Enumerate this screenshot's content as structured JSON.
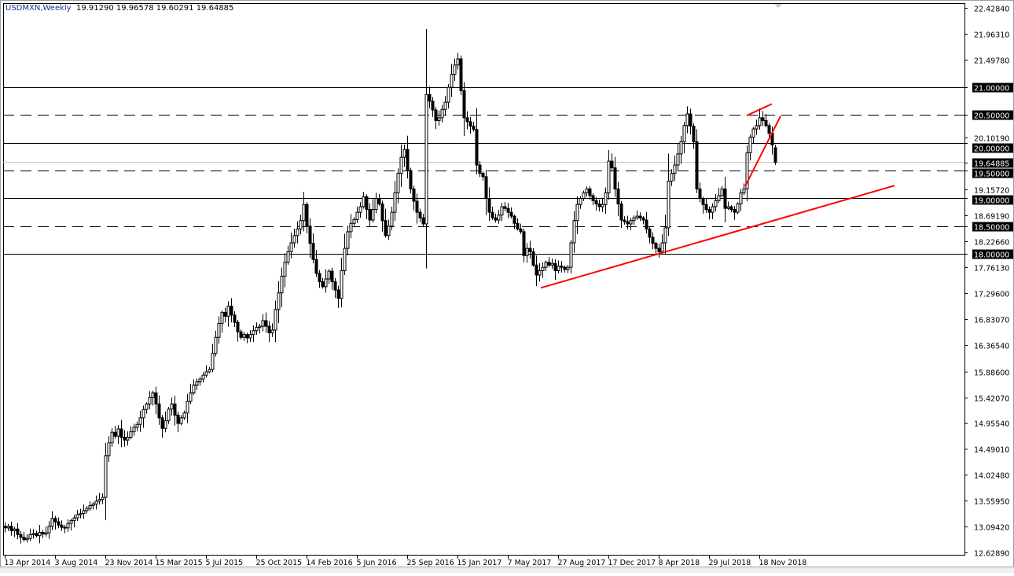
{
  "header": {
    "symbol_period": "USDMXN,Weekly",
    "open": "19.91290",
    "high": "19.96578",
    "low": "19.60291",
    "close": "19.64885"
  },
  "chart_data": {
    "type": "candlestick",
    "title": "USDMXN,Weekly",
    "ylim": [
      12.6289,
      22.4284
    ],
    "y_ticks": [
      "22.42840",
      "21.96310",
      "21.49780",
      "21.00000",
      "20.50000",
      "20.10190",
      "20.00000",
      "19.64885",
      "19.50000",
      "19.15720",
      "19.00000",
      "18.69190",
      "18.50000",
      "18.22660",
      "18.00000",
      "17.76130",
      "17.29600",
      "16.83070",
      "16.36540",
      "15.88600",
      "15.42070",
      "14.95540",
      "14.49010",
      "14.02480",
      "13.55950",
      "13.09420",
      "12.62890"
    ],
    "x_tick_labels": [
      "13 Apr 2014",
      "3 Aug 2014",
      "23 Nov 2014",
      "15 Mar 2015",
      "5 Jul 2015",
      "25 Oct 2015",
      "14 Feb 2016",
      "5 Jun 2016",
      "25 Sep 2016",
      "15 Jan 2017",
      "7 May 2017",
      "27 Aug 2017",
      "17 Dec 2017",
      "8 Apr 2018",
      "29 Jul 2018",
      "18 Nov 2018"
    ],
    "x_tick_interval_weeks": 16,
    "first_week": "13 Apr 2014",
    "weekly_closes": [
      13.07,
      13.1,
      13.02,
      13.05,
      12.95,
      12.9,
      12.86,
      12.88,
      12.95,
      12.97,
      12.93,
      12.99,
      12.96,
      12.98,
      13.1,
      13.24,
      13.18,
      13.12,
      13.08,
      13.07,
      13.15,
      13.2,
      13.25,
      13.31,
      13.33,
      13.38,
      13.42,
      13.47,
      13.5,
      13.55,
      13.58,
      13.62,
      14.37,
      14.6,
      14.79,
      14.72,
      14.85,
      14.7,
      14.65,
      14.7,
      14.8,
      14.88,
      14.93,
      15.05,
      15.2,
      15.3,
      15.42,
      15.5,
      15.3,
      15.05,
      14.86,
      15.0,
      15.21,
      15.3,
      15.1,
      14.95,
      15.05,
      15.14,
      15.35,
      15.5,
      15.64,
      15.7,
      15.75,
      15.82,
      15.88,
      15.92,
      16.21,
      16.5,
      16.75,
      16.95,
      16.88,
      17.06,
      16.9,
      16.77,
      16.6,
      16.5,
      16.55,
      16.49,
      16.55,
      16.62,
      16.68,
      16.7,
      16.8,
      16.7,
      16.58,
      16.63,
      17.0,
      17.3,
      17.6,
      17.85,
      18.04,
      18.2,
      18.33,
      18.45,
      18.6,
      18.89,
      18.5,
      18.19,
      17.9,
      17.65,
      17.5,
      17.41,
      17.55,
      17.69,
      17.5,
      17.35,
      17.2,
      17.7,
      18.1,
      18.4,
      18.55,
      18.62,
      18.75,
      18.85,
      19.03,
      18.8,
      18.61,
      18.8,
      19.0,
      18.9,
      18.6,
      18.33,
      18.5,
      18.75,
      19.1,
      19.45,
      19.74,
      19.88,
      19.5,
      19.17,
      18.95,
      18.75,
      18.65,
      18.54,
      20.87,
      20.75,
      20.59,
      20.4,
      20.45,
      20.6,
      20.73,
      21.0,
      21.23,
      21.4,
      21.51,
      20.94,
      20.45,
      20.38,
      20.3,
      20.24,
      19.6,
      19.45,
      19.39,
      19.0,
      18.75,
      18.65,
      18.61,
      18.7,
      18.85,
      18.82,
      18.75,
      18.68,
      18.55,
      18.45,
      18.4,
      17.97,
      18.1,
      18.04,
      17.8,
      17.62,
      17.7,
      17.76,
      17.85,
      17.8,
      17.83,
      17.7,
      17.78,
      17.76,
      17.72,
      17.76,
      18.2,
      18.6,
      18.89,
      19.0,
      19.1,
      19.17,
      19.05,
      18.96,
      18.9,
      18.85,
      18.89,
      19.1,
      19.67,
      19.55,
      19.17,
      18.9,
      18.61,
      18.58,
      18.54,
      18.6,
      18.65,
      18.68,
      18.65,
      18.61,
      18.45,
      18.3,
      18.19,
      18.1,
      18.04,
      18.2,
      18.47,
      19.31,
      19.45,
      19.6,
      19.8,
      20.02,
      20.31,
      20.52,
      20.3,
      20.02,
      19.17,
      19.0,
      18.89,
      18.8,
      18.75,
      18.85,
      18.96,
      19.05,
      19.17,
      18.82,
      18.85,
      18.8,
      18.75,
      18.9,
      19.1,
      19.17,
      19.82,
      20.1,
      20.25,
      20.31,
      20.45,
      20.4,
      20.31,
      20.17,
      19.96,
      19.65
    ],
    "last_candle": {
      "open": 19.9129,
      "high": 19.96578,
      "low": 19.60291,
      "close": 19.64885
    },
    "bid_line": {
      "price": 19.64885,
      "label": "19.64885",
      "color": "#c0c0c0"
    },
    "levels": [
      {
        "price": 21.0,
        "label": "21.00000",
        "style": "solid"
      },
      {
        "price": 20.5,
        "label": "20.50000",
        "style": "dashed"
      },
      {
        "price": 20.0,
        "label": "20.00000",
        "style": "solid"
      },
      {
        "price": 19.5,
        "label": "19.50000",
        "style": "dashed"
      },
      {
        "price": 19.0,
        "label": "19.00000",
        "style": "solid"
      },
      {
        "price": 18.5,
        "label": "18.50000",
        "style": "dashed"
      },
      {
        "price": 18.0,
        "label": "18.00000",
        "style": "solid"
      }
    ],
    "trendlines": [
      {
        "from": {
          "week": 170.5,
          "price": 17.39
        },
        "to": {
          "week": 283,
          "price": 19.23
        }
      },
      {
        "from": {
          "week": 236,
          "price": 20.49
        },
        "to": {
          "week": 244,
          "price": 20.7
        }
      },
      {
        "from": {
          "week": 235.5,
          "price": 19.22
        },
        "to": {
          "week": 246.75,
          "price": 20.48
        }
      }
    ],
    "colors": {
      "bull_body": "#ffffff",
      "bear_body": "#000000",
      "candle_outline": "#000000",
      "trendline": "#ff0000",
      "level_line": "#000000",
      "label_bg": "#000000",
      "label_text": "#ffffff"
    },
    "grid": false
  }
}
